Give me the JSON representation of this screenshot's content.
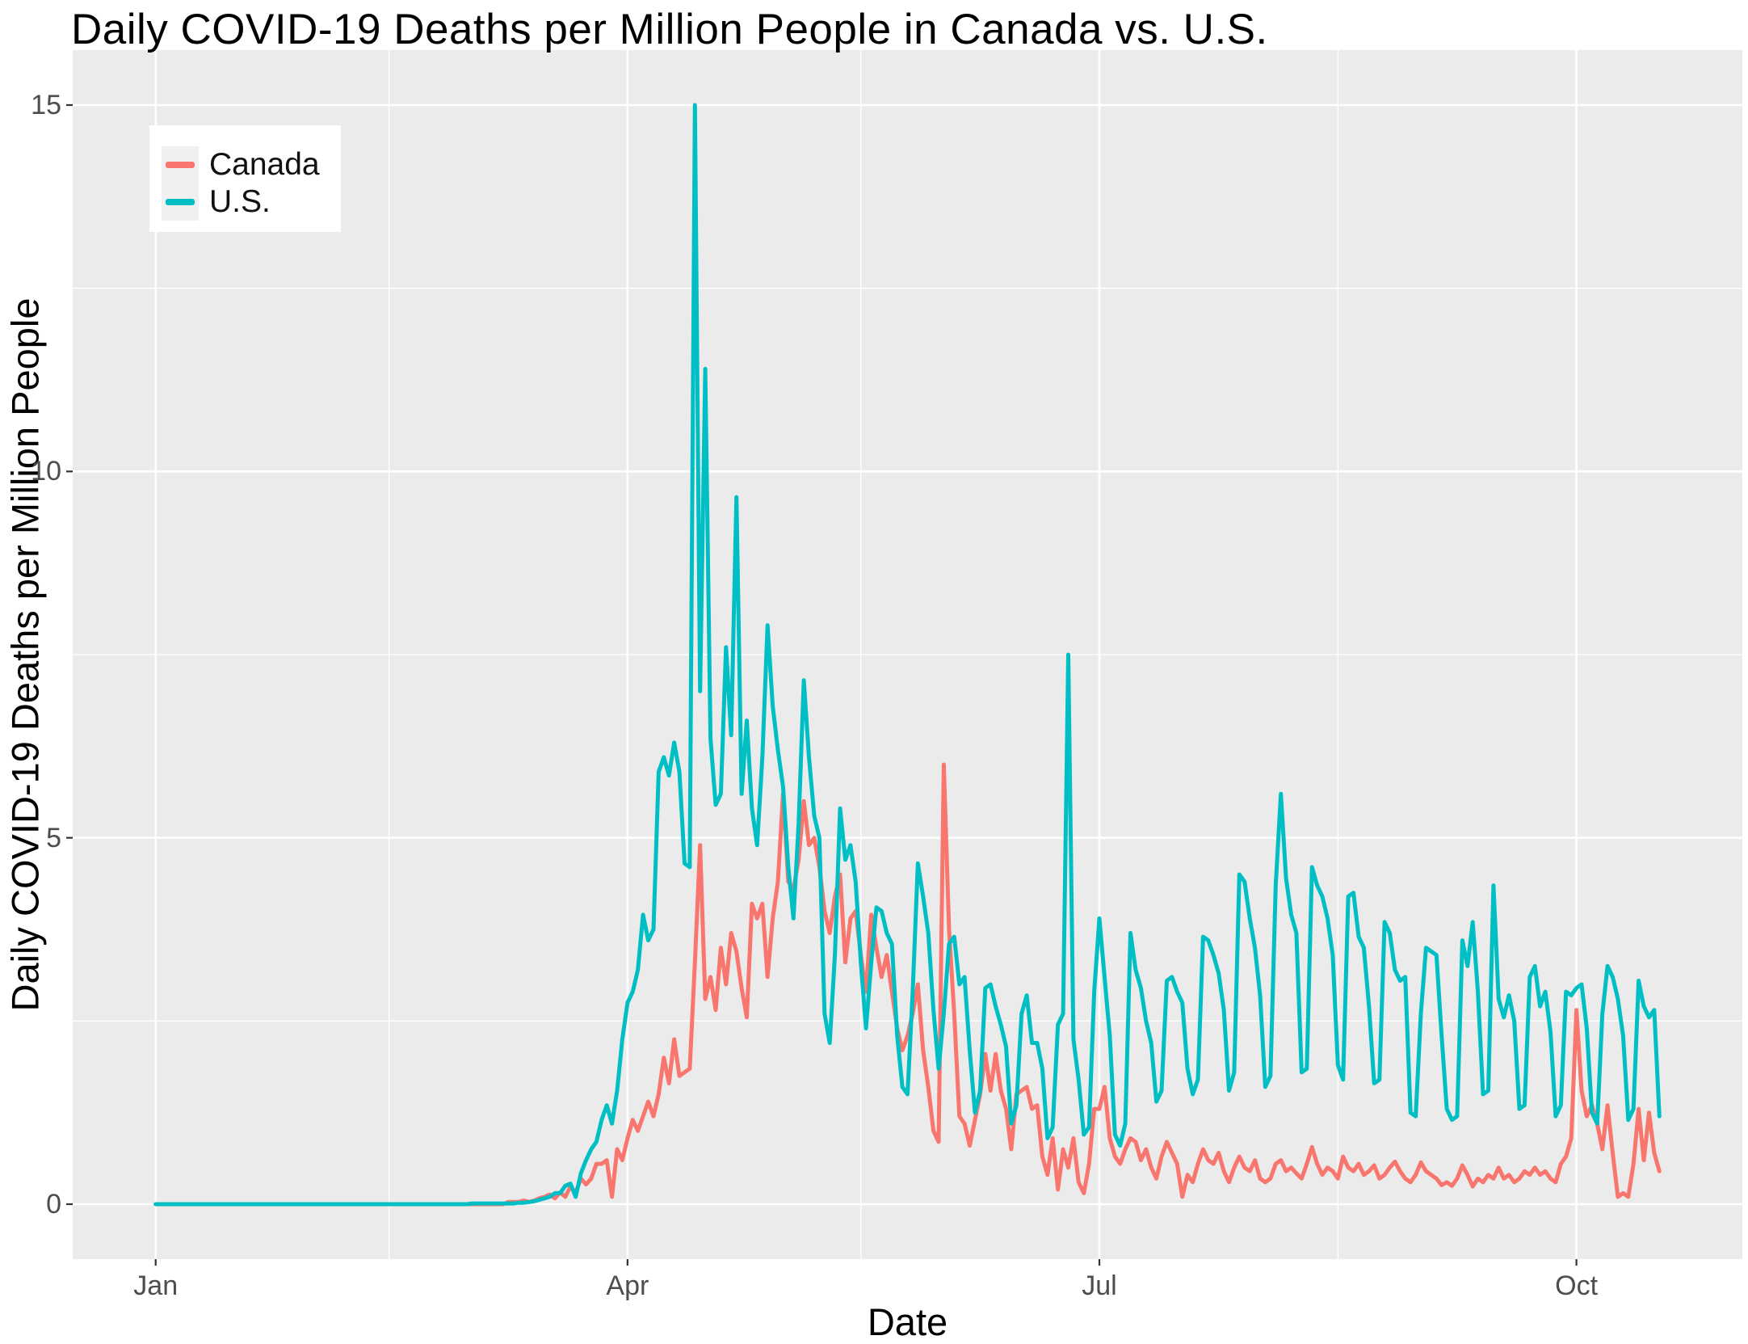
{
  "chart_data": {
    "type": "line",
    "title": "Daily COVID-19 Deaths per Million People in Canada vs. U.S.",
    "xlabel": "Date",
    "ylabel": "Daily COVID-19 Deaths per Million People",
    "start_date": "2020-01-01",
    "end_date": "2020-10-17",
    "x_tick_labels": [
      "Jan",
      "Apr",
      "Jul",
      "Oct"
    ],
    "x_tick_days": [
      0,
      91,
      182,
      274
    ],
    "x_minor_days": [
      45,
      136,
      228
    ],
    "y_ticks": [
      0,
      5,
      10,
      15
    ],
    "y_minor_ticks": [
      2.5,
      7.5,
      12.5
    ],
    "ylim": [
      0,
      15
    ],
    "grid": "white major and minor gridlines on gray panel",
    "legend_position": "inset top-left",
    "series": [
      {
        "name": "Canada",
        "color": "#F8766D",
        "values": [
          0,
          0,
          0,
          0,
          0,
          0,
          0,
          0,
          0,
          0,
          0,
          0,
          0,
          0,
          0,
          0,
          0,
          0,
          0,
          0,
          0,
          0,
          0,
          0,
          0,
          0,
          0,
          0,
          0,
          0,
          0,
          0,
          0,
          0,
          0,
          0,
          0,
          0,
          0,
          0,
          0,
          0,
          0,
          0,
          0,
          0,
          0,
          0,
          0,
          0,
          0,
          0,
          0,
          0,
          0,
          0,
          0,
          0,
          0,
          0,
          0,
          0,
          0,
          0,
          0,
          0,
          0,
          0,
          0.03,
          0.03,
          0.03,
          0.05,
          0.03,
          0.05,
          0.08,
          0.1,
          0.13,
          0.08,
          0.16,
          0.1,
          0.24,
          0.16,
          0.35,
          0.27,
          0.35,
          0.55,
          0.55,
          0.6,
          0.1,
          0.75,
          0.6,
          0.9,
          1.15,
          1.0,
          1.2,
          1.4,
          1.2,
          1.5,
          2.0,
          1.65,
          2.25,
          1.75,
          1.8,
          1.85,
          3.3,
          4.9,
          2.8,
          3.1,
          2.65,
          3.5,
          3.0,
          3.7,
          3.45,
          2.95,
          2.55,
          4.1,
          3.9,
          4.1,
          3.1,
          3.9,
          4.4,
          5.6,
          4.4,
          4.3,
          4.7,
          5.5,
          4.9,
          5.0,
          4.6,
          4.0,
          3.7,
          4.2,
          4.5,
          3.3,
          3.9,
          4.0,
          3.4,
          2.9,
          3.95,
          3.5,
          3.1,
          3.4,
          2.9,
          2.4,
          2.1,
          2.3,
          2.6,
          3.0,
          2.1,
          1.6,
          1.0,
          0.85,
          6.0,
          3.75,
          2.6,
          1.2,
          1.1,
          0.8,
          1.15,
          1.5,
          2.05,
          1.55,
          2.05,
          1.55,
          1.3,
          0.75,
          1.5,
          1.55,
          1.6,
          1.3,
          1.35,
          0.65,
          0.4,
          0.9,
          0.2,
          0.75,
          0.5,
          0.9,
          0.3,
          0.15,
          0.55,
          1.3,
          1.3,
          1.6,
          0.9,
          0.65,
          0.55,
          0.75,
          0.9,
          0.85,
          0.6,
          0.75,
          0.5,
          0.35,
          0.65,
          0.85,
          0.7,
          0.55,
          0.1,
          0.4,
          0.3,
          0.55,
          0.75,
          0.6,
          0.55,
          0.7,
          0.45,
          0.3,
          0.5,
          0.65,
          0.5,
          0.45,
          0.6,
          0.35,
          0.3,
          0.35,
          0.55,
          0.6,
          0.45,
          0.5,
          0.42,
          0.35,
          0.55,
          0.78,
          0.55,
          0.4,
          0.5,
          0.45,
          0.35,
          0.65,
          0.5,
          0.45,
          0.55,
          0.4,
          0.45,
          0.53,
          0.35,
          0.4,
          0.5,
          0.58,
          0.45,
          0.35,
          0.3,
          0.4,
          0.57,
          0.45,
          0.4,
          0.35,
          0.26,
          0.3,
          0.25,
          0.35,
          0.53,
          0.4,
          0.24,
          0.35,
          0.3,
          0.4,
          0.35,
          0.5,
          0.35,
          0.4,
          0.3,
          0.35,
          0.45,
          0.4,
          0.5,
          0.4,
          0.45,
          0.35,
          0.3,
          0.55,
          0.65,
          0.9,
          2.65,
          1.55,
          1.2,
          1.35,
          1.1,
          0.75,
          1.35,
          0.7,
          0.1,
          0.15,
          0.1,
          0.55,
          1.3,
          0.6,
          1.25,
          0.7,
          0.45
        ]
      },
      {
        "name": "U.S.",
        "color": "#00BFC4",
        "values": [
          0,
          0,
          0,
          0,
          0,
          0,
          0,
          0,
          0,
          0,
          0,
          0,
          0,
          0,
          0,
          0,
          0,
          0,
          0,
          0,
          0,
          0,
          0,
          0,
          0,
          0,
          0,
          0,
          0,
          0,
          0,
          0,
          0,
          0,
          0,
          0,
          0,
          0,
          0,
          0,
          0,
          0,
          0,
          0,
          0,
          0,
          0,
          0,
          0,
          0,
          0,
          0,
          0,
          0,
          0,
          0,
          0,
          0,
          0,
          0,
          0,
          0.01,
          0.01,
          0.01,
          0.01,
          0.01,
          0.01,
          0.01,
          0.01,
          0.01,
          0.02,
          0.02,
          0.03,
          0.04,
          0.06,
          0.08,
          0.1,
          0.15,
          0.15,
          0.25,
          0.28,
          0.1,
          0.42,
          0.6,
          0.75,
          0.85,
          1.15,
          1.35,
          1.1,
          1.55,
          2.25,
          2.75,
          2.9,
          3.2,
          3.95,
          3.6,
          3.75,
          5.9,
          6.1,
          5.85,
          6.3,
          5.9,
          4.65,
          4.6,
          15.0,
          7.0,
          11.4,
          6.35,
          5.45,
          5.6,
          7.6,
          6.4,
          9.65,
          5.6,
          6.6,
          5.4,
          4.9,
          6.1,
          7.9,
          6.8,
          6.2,
          5.7,
          4.6,
          3.9,
          5.2,
          7.15,
          6.1,
          5.3,
          5.0,
          2.6,
          2.2,
          3.4,
          5.4,
          4.7,
          4.9,
          4.4,
          3.3,
          2.4,
          3.3,
          4.05,
          4.0,
          3.7,
          3.55,
          2.3,
          1.6,
          1.5,
          2.9,
          4.65,
          4.2,
          3.7,
          2.65,
          1.85,
          2.6,
          3.55,
          3.65,
          3.0,
          3.1,
          2.1,
          1.25,
          1.55,
          2.95,
          3.0,
          2.7,
          2.45,
          2.15,
          1.1,
          1.35,
          2.6,
          2.85,
          2.2,
          2.2,
          1.85,
          0.9,
          1.05,
          2.45,
          2.6,
          7.5,
          2.25,
          1.7,
          0.95,
          1.05,
          2.9,
          3.9,
          3.1,
          2.3,
          0.95,
          0.8,
          1.1,
          3.7,
          3.2,
          2.95,
          2.5,
          2.2,
          1.4,
          1.55,
          3.05,
          3.1,
          2.9,
          2.75,
          1.85,
          1.5,
          1.7,
          3.65,
          3.6,
          3.4,
          3.15,
          2.65,
          1.55,
          1.8,
          4.5,
          4.4,
          3.9,
          3.5,
          2.85,
          1.6,
          1.75,
          4.35,
          5.6,
          4.45,
          3.95,
          3.7,
          1.8,
          1.85,
          4.6,
          4.35,
          4.2,
          3.9,
          3.4,
          1.9,
          1.7,
          4.2,
          4.25,
          3.65,
          3.5,
          2.7,
          1.65,
          1.7,
          3.85,
          3.7,
          3.2,
          3.05,
          3.1,
          1.25,
          1.2,
          2.6,
          3.5,
          3.45,
          3.4,
          2.3,
          1.3,
          1.15,
          1.2,
          3.6,
          3.25,
          3.85,
          2.9,
          1.5,
          1.55,
          4.35,
          2.8,
          2.55,
          2.85,
          2.5,
          1.3,
          1.35,
          3.1,
          3.25,
          2.7,
          2.9,
          2.35,
          1.2,
          1.35,
          2.9,
          2.85,
          2.95,
          3.0,
          2.4,
          1.25,
          1.1,
          2.6,
          3.25,
          3.1,
          2.8,
          2.3,
          1.15,
          1.3,
          3.05,
          2.7,
          2.55,
          2.65,
          1.2
        ]
      }
    ]
  },
  "colors": {
    "canada_line": "#F8766D",
    "us_line": "#00BFC4",
    "panel_background": "#EBEBEB",
    "gridline": "#FFFFFF",
    "axis_text": "#4D4D4D",
    "tick_mark": "#333333",
    "legend_background": "#FFFFFF",
    "legend_key_background": "#F0F0F0",
    "title_text": "#000000"
  }
}
